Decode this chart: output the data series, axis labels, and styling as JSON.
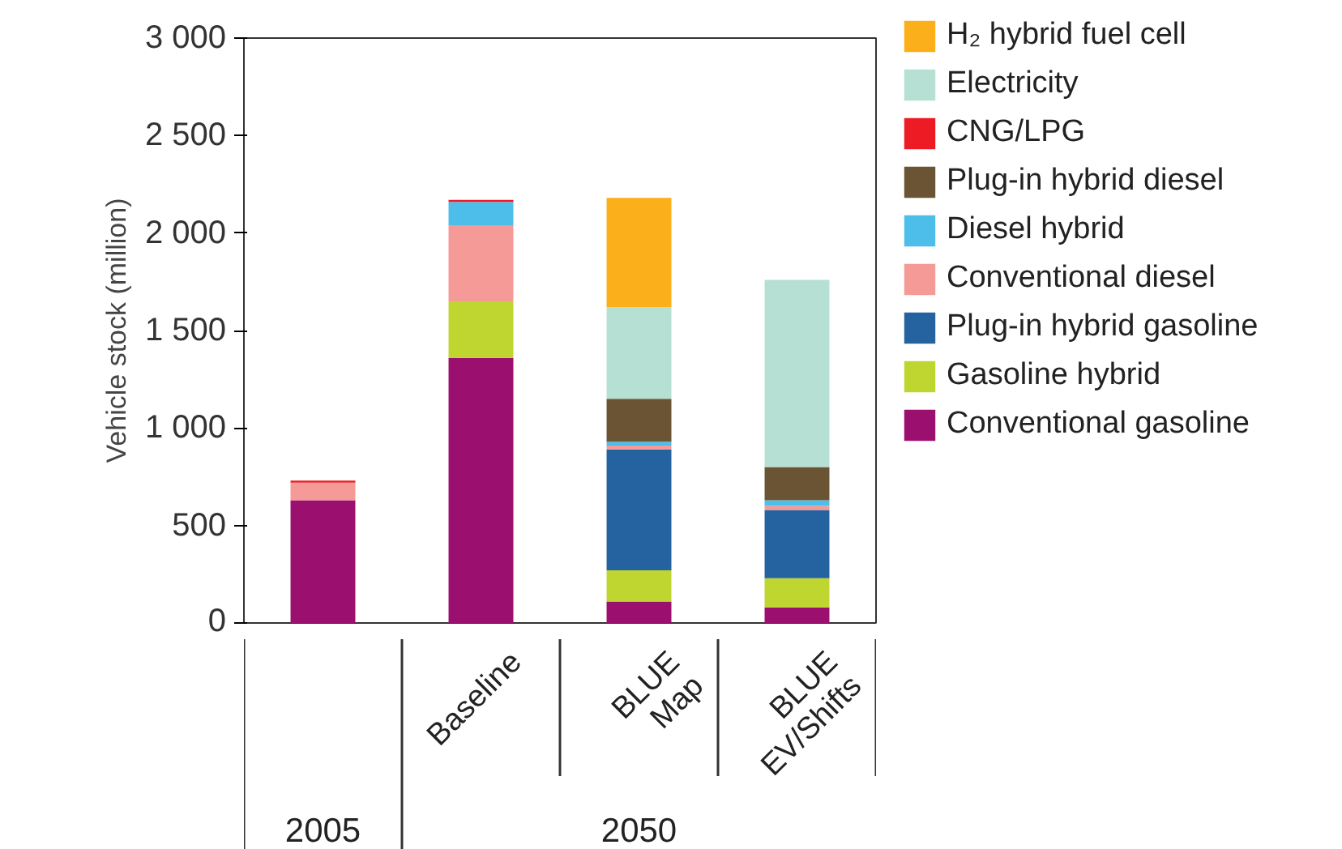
{
  "chart_data": {
    "type": "bar",
    "stacked": true,
    "ylabel": "Vehicle stock (million)",
    "categories": [
      null,
      "Baseline",
      "BLUE Map",
      "BLUE EV/Shifts"
    ],
    "annotations": [
      "2005",
      "2050"
    ],
    "series": [
      {
        "name": "Conventional gasoline",
        "color": "#9b0f6f",
        "values": [
          630,
          1360,
          110,
          80
        ]
      },
      {
        "name": "Gasoline hybrid",
        "color": "#c0d630",
        "values": [
          0,
          290,
          160,
          150
        ]
      },
      {
        "name": "Plug-in hybrid gasoline",
        "color": "#2563a0",
        "values": [
          0,
          0,
          620,
          350
        ]
      },
      {
        "name": "Conventional diesel",
        "color": "#f59a96",
        "values": [
          90,
          390,
          20,
          20
        ]
      },
      {
        "name": "Diesel hybrid",
        "color": "#4dbde9",
        "values": [
          0,
          120,
          20,
          30
        ]
      },
      {
        "name": "Plug-in hybrid diesel",
        "color": "#6b5434",
        "values": [
          0,
          0,
          220,
          170
        ]
      },
      {
        "name": "CNG/LPG",
        "color": "#ed1c24",
        "values": [
          10,
          10,
          0,
          0
        ]
      },
      {
        "name": "Electricity",
        "color": "#b5e0d3",
        "values": [
          0,
          0,
          470,
          960
        ]
      },
      {
        "name": "H₂ hybrid fuel cell",
        "color": "#fbaf1a",
        "values": [
          0,
          0,
          560,
          0
        ]
      }
    ],
    "ylim": [
      0,
      3000
    ],
    "yticks": [
      0,
      500,
      {
        "value": 1000,
        "label": "1 000"
      },
      {
        "value": 1500,
        "label": "1 500"
      },
      {
        "value": 2000,
        "label": "2 000"
      },
      {
        "value": 2500,
        "label": "2 500"
      },
      {
        "value": 3000,
        "label": "3 000"
      }
    ],
    "grid": false,
    "legend": "right"
  }
}
